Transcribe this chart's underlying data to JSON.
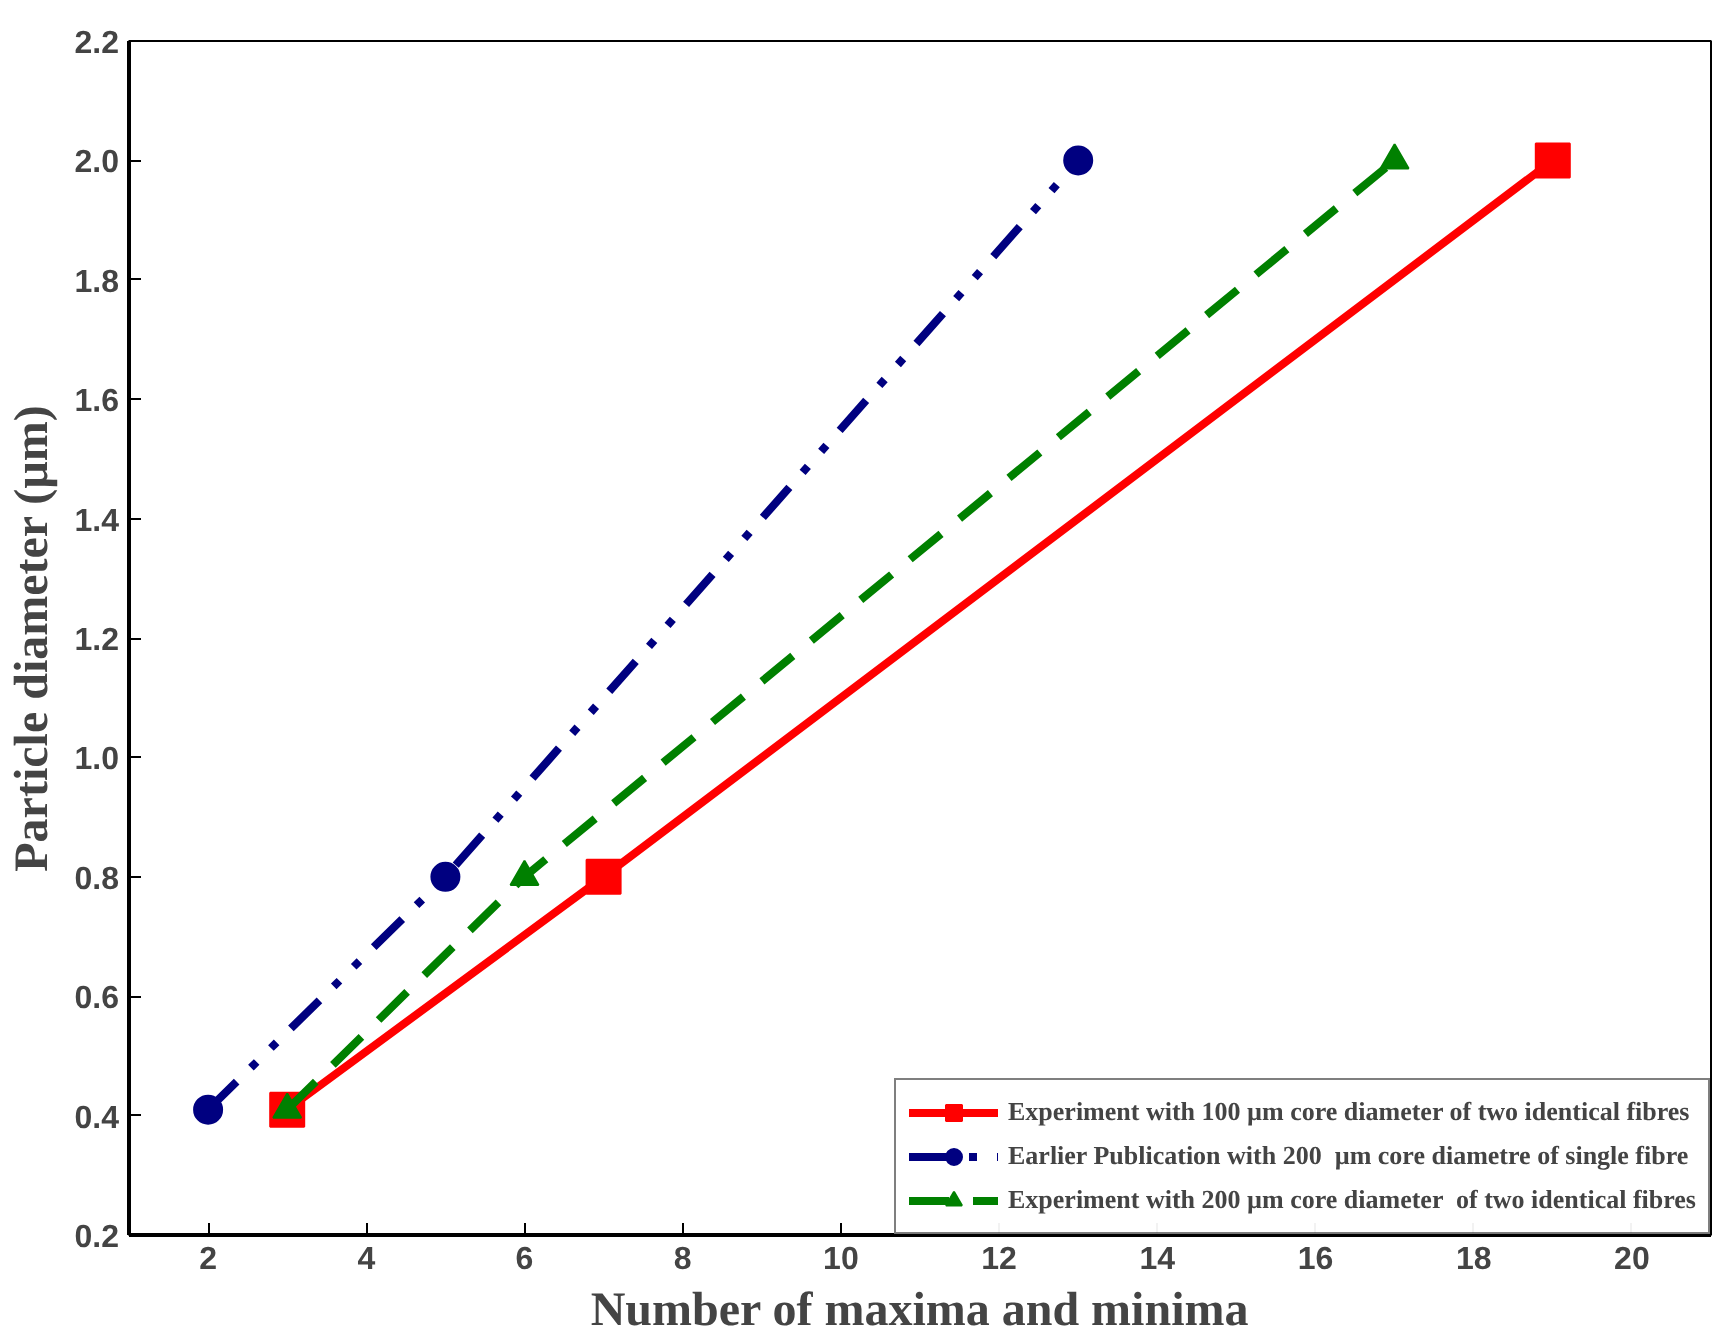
{
  "chart_data": {
    "type": "line",
    "xlabel": "Number of maxima and minima",
    "ylabel": "Particle diameter (µm)",
    "xlim": [
      1,
      21
    ],
    "ylim": [
      0.2,
      2.2
    ],
    "xticks": [
      2,
      4,
      6,
      8,
      10,
      12,
      14,
      16,
      18,
      20
    ],
    "yticks": [
      0.2,
      0.4,
      0.6,
      0.8,
      {
        "value": 1,
        "label": "1.0"
      },
      1.2,
      1.4,
      1.6,
      1.8,
      {
        "value": 2,
        "label": "2.0"
      },
      2.2
    ],
    "grid": false,
    "legend": "bottom right",
    "series": [
      {
        "name": "Experiment with 100 µm core diameter of two identical fibres",
        "color": "#ff0000",
        "x": [
          3,
          7,
          19
        ],
        "values": [
          0.41,
          0.8,
          2.0
        ],
        "marker": "square",
        "line_style": "solid"
      },
      {
        "name": "Earlier Publication with 200  µm core diametre of single fibre",
        "color": "#000080",
        "x": [
          2,
          5,
          13
        ],
        "values": [
          0.41,
          0.8,
          2.0
        ],
        "marker": "circle",
        "line_style": "dashdot"
      },
      {
        "name": "Experiment with 200 µm core diameter  of two identical fibres",
        "color": "#008000",
        "x": [
          3,
          6,
          17
        ],
        "values": [
          0.41,
          0.8,
          2.0
        ],
        "marker": "triangle",
        "line_style": "dashed"
      }
    ]
  }
}
